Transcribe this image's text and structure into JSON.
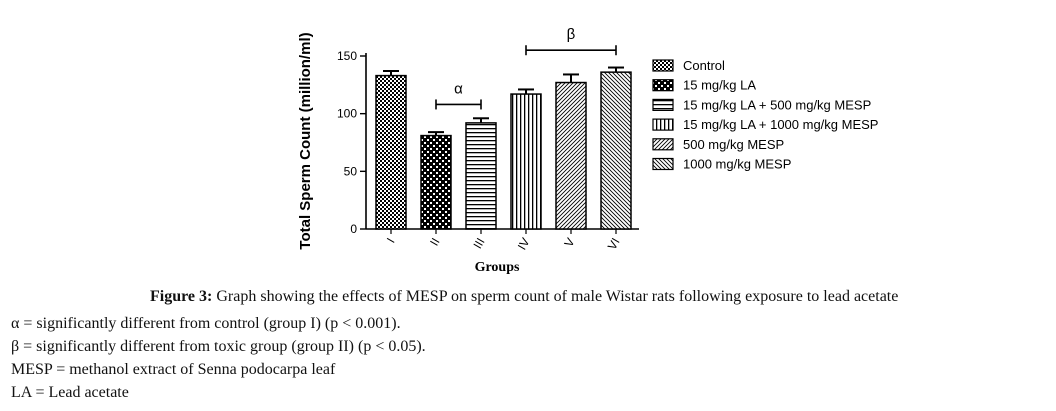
{
  "chart_data": {
    "type": "bar",
    "ylabel": "Total Sperm Count (million/ml)",
    "xlabel": "Groups",
    "ylim": [
      0,
      150
    ],
    "yticks": [
      0,
      50,
      100,
      150
    ],
    "categories": [
      "I",
      "II",
      "III",
      "IV",
      "V",
      "VI"
    ],
    "values": [
      133,
      81,
      92,
      117,
      127,
      136
    ],
    "errors": [
      4,
      3,
      4,
      4,
      7,
      4
    ],
    "legend": [
      "Control",
      "15 mg/kg LA",
      "15 mg/kg LA + 500 mg/kg MESP",
      "15 mg/kg LA + 1000 mg/kg MESP",
      "500 mg/kg MESP",
      "1000 mg/kg MESP"
    ],
    "legend_position": "right",
    "annotations": [
      {
        "symbol": "α",
        "from": "II",
        "to": "III",
        "level": 108
      },
      {
        "symbol": "β",
        "from": "IV",
        "to": "VI",
        "level": 155
      }
    ]
  },
  "caption": {
    "figure_label": "Figure 3:",
    "figure_text": " Graph showing the effects of MESP on sperm count of male Wistar rats following exposure to lead acetate",
    "notes": [
      "α = significantly different from control (group I) (p < 0.001).",
      "β = significantly different from toxic group (group II) (p < 0.05).",
      "MESP = methanol extract of Senna podocarpa leaf",
      "LA = Lead acetate"
    ]
  }
}
